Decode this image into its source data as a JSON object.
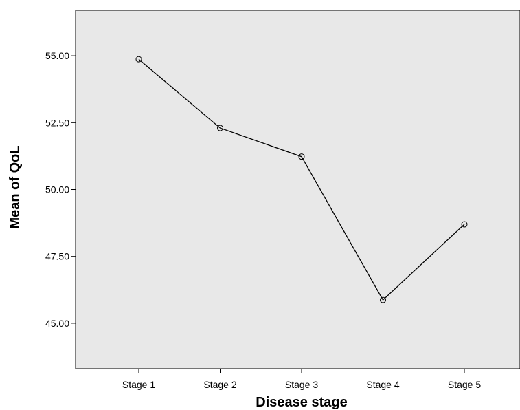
{
  "chart_data": {
    "type": "line",
    "categories": [
      "Stage 1",
      "Stage 2",
      "Stage 3",
      "Stage 4",
      "Stage 5"
    ],
    "values": [
      54.87,
      52.3,
      51.23,
      45.87,
      48.7
    ],
    "xlabel": "Disease stage",
    "ylabel": "Mean of QoL",
    "ylim": [
      43.3,
      56.7
    ],
    "yticks": [
      45.0,
      47.5,
      50.0,
      52.5,
      55.0
    ],
    "ytick_labels": [
      "45.00",
      "47.50",
      "50.00",
      "52.50",
      "55.00"
    ],
    "grid": false,
    "colors": {
      "plot_background": "#e8e8e8",
      "line": "#000000",
      "marker_edge": "#000000"
    }
  }
}
